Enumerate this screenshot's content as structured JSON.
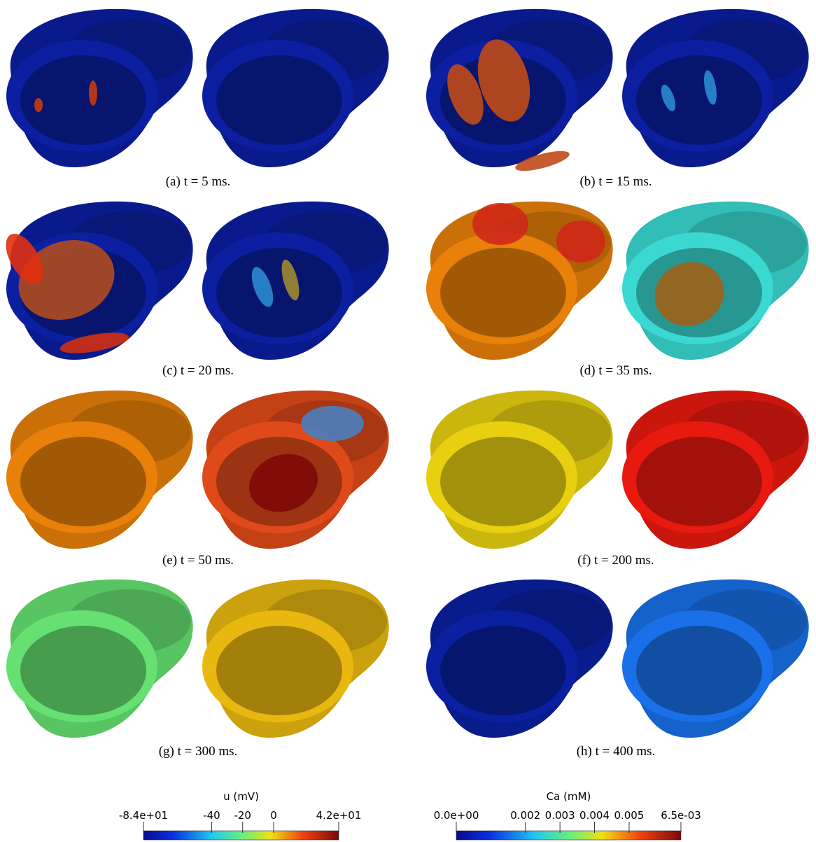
{
  "panels": [
    {
      "caption": "(a) t = 5 ms."
    },
    {
      "caption": "(b) t = 15 ms."
    },
    {
      "caption": "(c) t = 20 ms."
    },
    {
      "caption": "(d) t = 35 ms."
    },
    {
      "caption": "(e) t = 50 ms."
    },
    {
      "caption": "(f) t = 200 ms."
    },
    {
      "caption": "(g) t = 300 ms."
    },
    {
      "caption": "(h) t = 400 ms."
    }
  ],
  "colorbars": [
    {
      "title": "u (mV)",
      "range": [
        -84,
        42
      ],
      "ticks": [
        {
          "value": -84,
          "label": "-8.4e+01"
        },
        -40,
        -20,
        0,
        {
          "value": 42,
          "label": "4.2e+01"
        }
      ]
    },
    {
      "title": "Ca (mM)",
      "range": [
        0,
        0.0065
      ],
      "ticks": [
        {
          "value": 0,
          "label": "0.0e+00"
        },
        0.002,
        0.003,
        0.004,
        0.005,
        {
          "value": 0.0065,
          "label": "6.5e-03"
        }
      ]
    }
  ]
}
